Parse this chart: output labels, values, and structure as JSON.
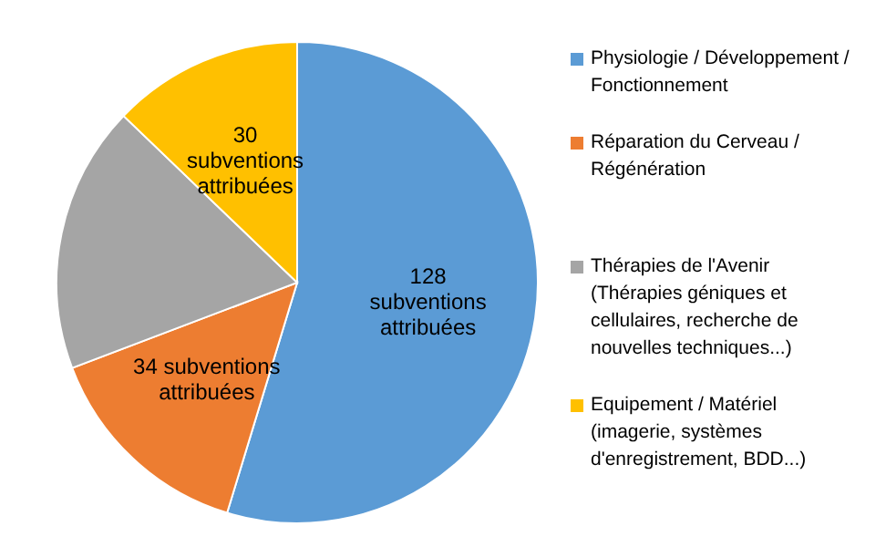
{
  "chart_data": {
    "type": "pie",
    "categories": [
      "Physiologie / Développement / Fonctionnement",
      "Réparation du Cerveau / Régénération",
      "Thérapies de l'Avenir (Thérapies géniques et cellulaires, recherche de nouvelles techniques...)",
      "Equipement / Matériel (imagerie, systèmes d'enregistrement, BDD...)"
    ],
    "values": [
      128,
      34,
      42,
      30
    ],
    "colors": [
      "#5b9bd5",
      "#ed7d31",
      "#a5a5a5",
      "#ffc000"
    ],
    "value_labels": [
      "128\nsubventions\nattribuées",
      "34 subventions\nattribuées",
      null,
      "30\nsubventions\nattribuées"
    ],
    "legend": "right"
  }
}
